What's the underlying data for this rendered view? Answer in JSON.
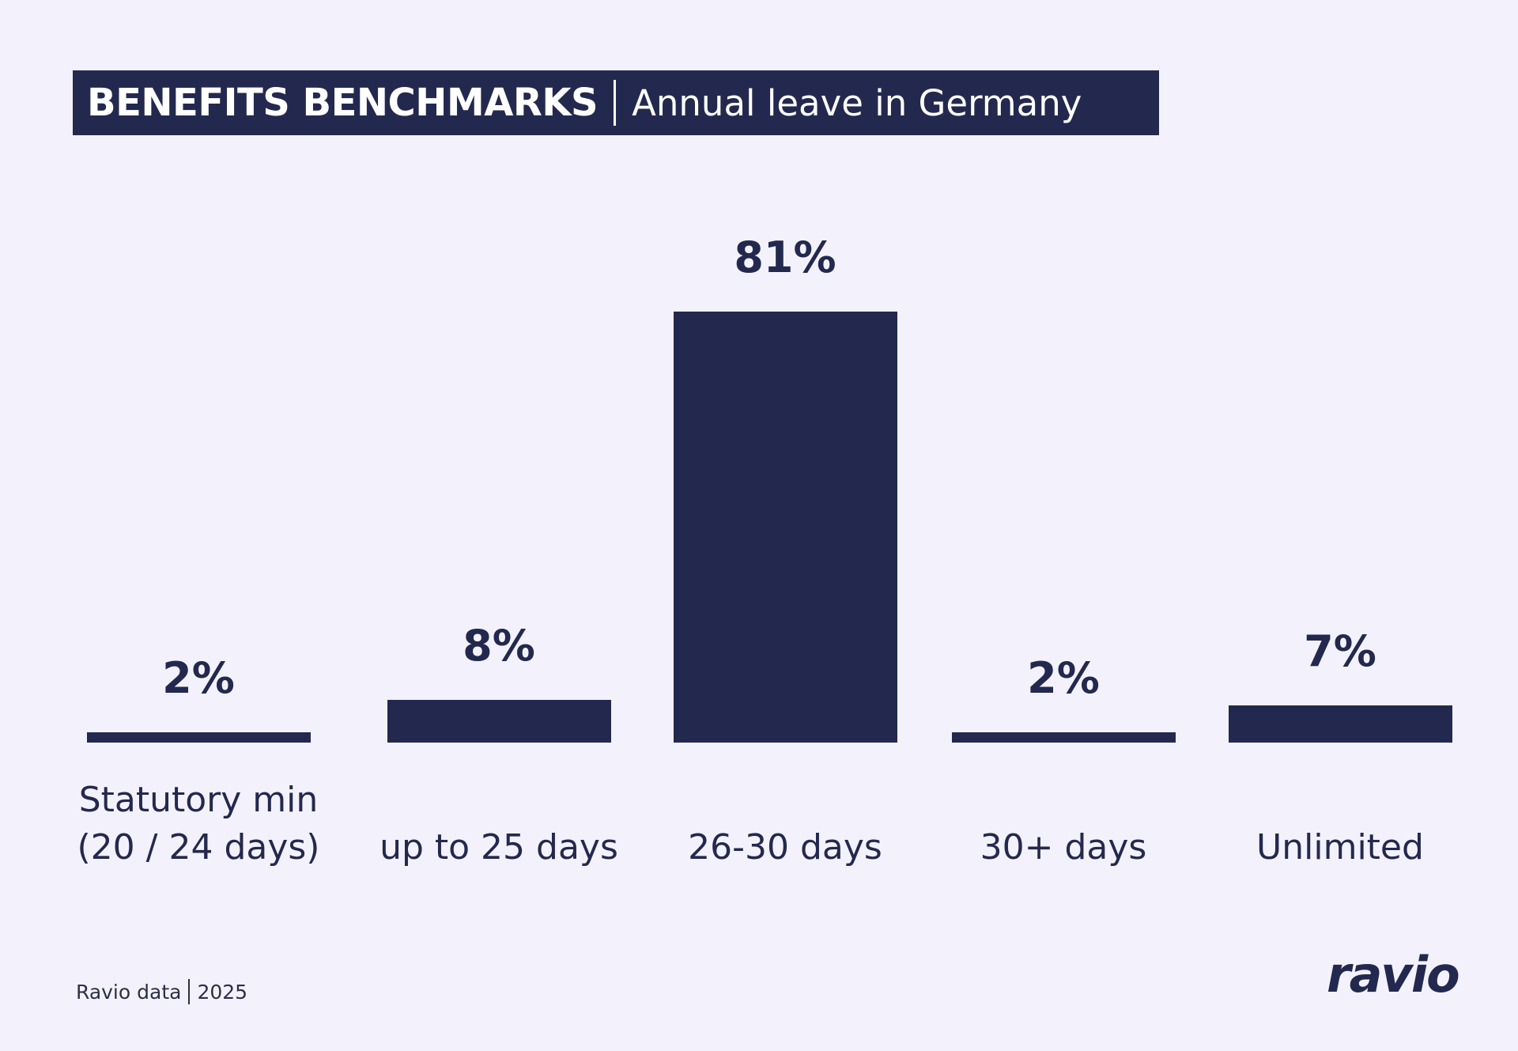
{
  "chart_data": {
    "type": "bar",
    "title": "BENEFITS BENCHMARKS",
    "subtitle": "Annual leave in Germany",
    "categories": [
      "Statutory min\n(20 / 24 days)",
      "up to 25 days",
      "26-30 days",
      "30+ days",
      "Unlimited"
    ],
    "values": [
      2,
      8,
      81,
      2,
      7
    ],
    "value_labels": [
      "2%",
      "8%",
      "81%",
      "2%",
      "7%"
    ],
    "color": "#23294e",
    "source": "Ravio data",
    "year": "2025",
    "logo": "ravio"
  }
}
